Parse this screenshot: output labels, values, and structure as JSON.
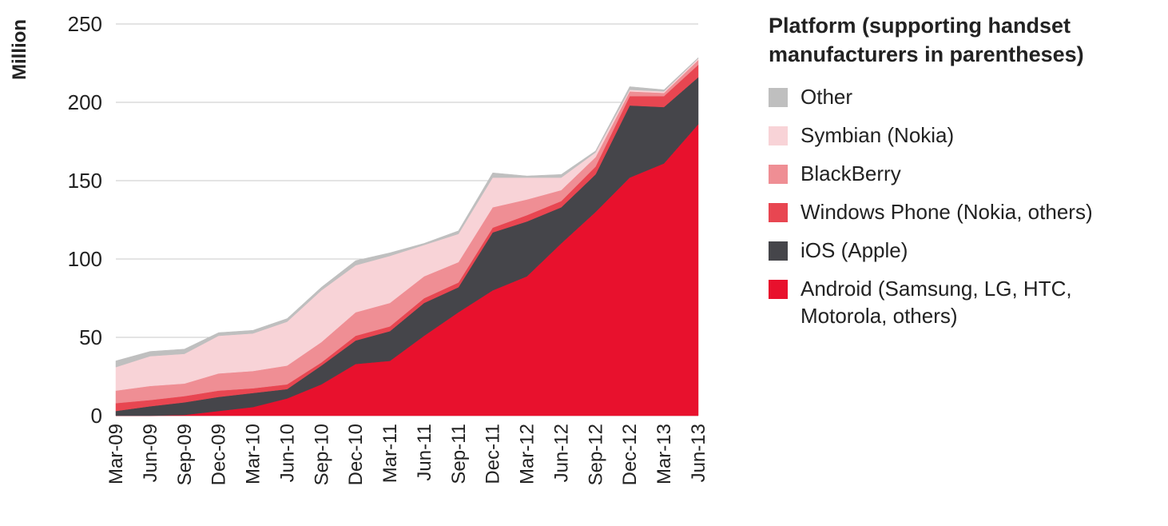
{
  "chart_data": {
    "type": "area",
    "stacked": true,
    "ylabel": "Million",
    "ylim": [
      0,
      250
    ],
    "yticks": [
      0,
      50,
      100,
      150,
      200,
      250
    ],
    "grid": true,
    "categories": [
      "Mar-09",
      "Jun-09",
      "Sep-09",
      "Dec-09",
      "Mar-10",
      "Jun-10",
      "Sep-10",
      "Dec-10",
      "Mar-11",
      "Jun-11",
      "Sep-11",
      "Dec-11",
      "Mar-12",
      "Jun-12",
      "Sep-12",
      "Dec-12",
      "Mar-13",
      "Jun-13"
    ],
    "series": [
      {
        "name": "Android (Samsung, LG, HTC, Motorola, others)",
        "color": "#e8112d",
        "values": [
          0,
          0,
          0.5,
          3,
          5.5,
          11,
          20,
          33,
          35,
          51,
          66,
          80,
          89,
          110,
          130,
          152,
          161,
          186
        ]
      },
      {
        "name": "iOS (Apple)",
        "color": "#45454a",
        "values": [
          3,
          6,
          8,
          9,
          9,
          6,
          12,
          15,
          19,
          21,
          16,
          37,
          35,
          23,
          24,
          46,
          36,
          30
        ]
      },
      {
        "name": "Windows Phone (Nokia, others)",
        "color": "#e84651",
        "values": [
          5,
          4,
          4,
          4,
          3,
          3,
          2,
          3,
          3,
          3,
          3,
          3,
          4,
          4,
          5,
          6,
          7,
          8
        ]
      },
      {
        "name": "BlackBerry",
        "color": "#ef8e94",
        "values": [
          8,
          9,
          8,
          11,
          11,
          12,
          13,
          15,
          15,
          14,
          13,
          13,
          10,
          7,
          6,
          3,
          2,
          3
        ]
      },
      {
        "name": "Symbian (Nokia)",
        "color": "#f8d3d7",
        "values": [
          15,
          19,
          19,
          24,
          24,
          28,
          33,
          30,
          30,
          20,
          18,
          19,
          14,
          8,
          3,
          1,
          1,
          1
        ]
      },
      {
        "name": "Other",
        "color": "#bfbfbf",
        "values": [
          4,
          3,
          3,
          2,
          2,
          2,
          2,
          3,
          2,
          1,
          2,
          3,
          1,
          2,
          1,
          2,
          1,
          0.5
        ]
      }
    ],
    "legend": {
      "title": "Platform (supporting handset manufacturers in parentheses)",
      "placement": "right",
      "order": [
        "Other",
        "Symbian (Nokia)",
        "BlackBerry",
        "Windows Phone (Nokia, others)",
        "iOS (Apple)",
        "Android (Samsung, LG, HTC, Motorola, others)"
      ]
    }
  }
}
